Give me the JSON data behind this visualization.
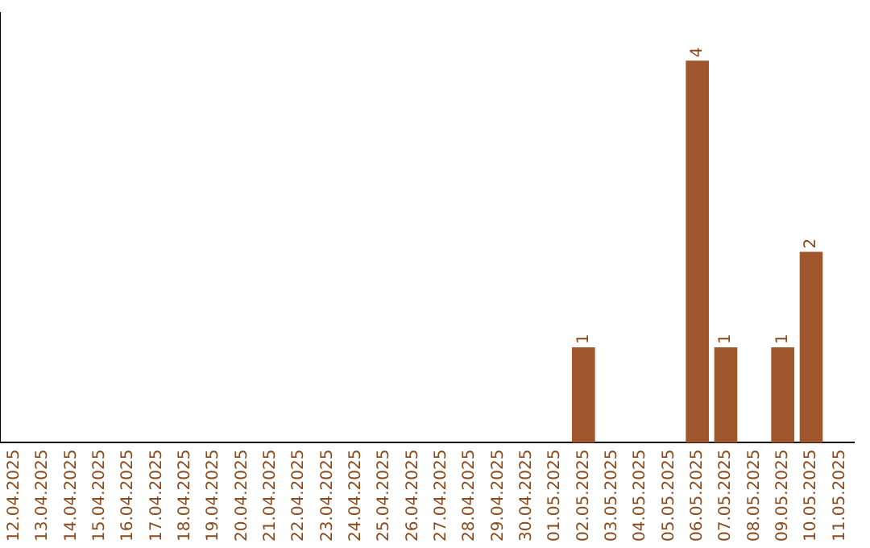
{
  "chart_data": {
    "type": "bar",
    "categories": [
      "12.04.2025",
      "13.04.2025",
      "14.04.2025",
      "15.04.2025",
      "16.04.2025",
      "17.04.2025",
      "18.04.2025",
      "19.04.2025",
      "20.04.2025",
      "21.04.2025",
      "22.04.2025",
      "23.04.2025",
      "24.04.2025",
      "25.04.2025",
      "26.04.2025",
      "27.04.2025",
      "28.04.2025",
      "29.04.2025",
      "30.04.2025",
      "01.05.2025",
      "02.05.2025",
      "03.05.2025",
      "04.05.2025",
      "05.05.2025",
      "06.05.2025",
      "07.05.2025",
      "08.05.2025",
      "09.05.2025",
      "10.05.2025",
      "11.05.2025"
    ],
    "values": [
      null,
      null,
      null,
      null,
      null,
      null,
      null,
      null,
      null,
      null,
      null,
      null,
      null,
      null,
      null,
      null,
      null,
      null,
      null,
      null,
      1,
      null,
      null,
      null,
      4,
      1,
      null,
      1,
      2,
      null
    ],
    "value_labels": [
      null,
      null,
      null,
      null,
      null,
      null,
      null,
      null,
      null,
      null,
      null,
      null,
      null,
      null,
      null,
      null,
      null,
      null,
      null,
      null,
      "1",
      null,
      null,
      null,
      "4",
      "1",
      null,
      "1",
      "2",
      null
    ],
    "color": "#a0562c",
    "grid": false,
    "legend": false,
    "tick_labels": "x"
  }
}
